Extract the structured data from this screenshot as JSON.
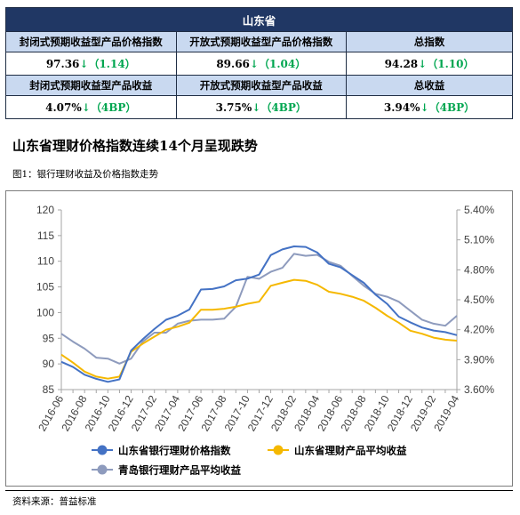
{
  "summary": {
    "title": "山东省",
    "headers1": [
      "封闭式预期收益型产品价格指数",
      "开放式预期收益型产品价格指数",
      "总指数"
    ],
    "values1": [
      {
        "value": "97.36",
        "arrow": "↓",
        "change": "（1.14）"
      },
      {
        "value": "89.66",
        "arrow": "↓",
        "change": "（1.04）"
      },
      {
        "value": "94.28",
        "arrow": "↓",
        "change": "（1.10）"
      }
    ],
    "headers2": [
      "封闭式预期收益型产品收益",
      "开放式预期收益型产品收益",
      "总收益"
    ],
    "values2": [
      {
        "value": "4.07%",
        "arrow": "↓",
        "change": "（4BP）"
      },
      {
        "value": "3.75%",
        "arrow": "↓",
        "change": "（4BP）"
      },
      {
        "value": "3.94%",
        "arrow": "↓",
        "change": "（4BP）"
      }
    ]
  },
  "section_title": "山东省理财价格指数连续14个月呈现跌势",
  "figure_label": "图1：银行理财收益及价格指数走势",
  "source": "资料来源：普益标准",
  "chart_data": {
    "type": "line",
    "x": [
      "2016-06",
      "2016-07",
      "2016-08",
      "2016-09",
      "2016-10",
      "2016-11",
      "2016-12",
      "2017-01",
      "2017-02",
      "2017-03",
      "2017-04",
      "2017-05",
      "2017-06",
      "2017-07",
      "2017-08",
      "2017-09",
      "2017-10",
      "2017-11",
      "2017-12",
      "2018-01",
      "2018-02",
      "2018-03",
      "2018-04",
      "2018-05",
      "2018-06",
      "2018-07",
      "2018-08",
      "2018-09",
      "2018-10",
      "2018-11",
      "2018-12",
      "2019-01",
      "2019-02",
      "2019-03",
      "2019-04"
    ],
    "x_tick_labels": [
      "2016-06",
      "2016-08",
      "2016-10",
      "2016-12",
      "2017-02",
      "2017-04",
      "2017-06",
      "2017-08",
      "2017-10",
      "2017-12",
      "2018-02",
      "2018-04",
      "2018-06",
      "2018-08",
      "2018-10",
      "2018-12",
      "2019-02",
      "2019-04"
    ],
    "y_left": {
      "min": 85,
      "max": 120,
      "ticks": [
        "85",
        "90",
        "95",
        "100",
        "105",
        "110",
        "115",
        "120"
      ]
    },
    "y_right": {
      "min": 3.6,
      "max": 5.4,
      "ticks": [
        "3.60%",
        "3.90%",
        "4.20%",
        "4.50%",
        "4.80%",
        "5.10%",
        "5.40%"
      ]
    },
    "series": [
      {
        "name": "山东省银行理财价格指数",
        "axis": "left",
        "color": "#4472c4",
        "values": [
          90.4,
          89.4,
          87.9,
          87.1,
          86.5,
          87.0,
          92.6,
          94.8,
          96.8,
          98.6,
          99.4,
          100.6,
          104.5,
          104.6,
          105.1,
          106.3,
          106.6,
          107.4,
          111.2,
          112.3,
          112.9,
          112.8,
          111.7,
          109.5,
          108.8,
          107.3,
          105.8,
          103.5,
          101.7,
          99.2,
          98.1,
          97.1,
          96.5,
          96.2,
          95.6
        ]
      },
      {
        "name": "山东省理财产品平均收益",
        "axis": "right",
        "color": "#f5b800",
        "values": [
          3.95,
          3.87,
          3.78,
          3.73,
          3.71,
          3.73,
          3.98,
          4.06,
          4.13,
          4.2,
          4.23,
          4.27,
          4.4,
          4.4,
          4.41,
          4.43,
          4.46,
          4.48,
          4.64,
          4.67,
          4.7,
          4.69,
          4.65,
          4.58,
          4.56,
          4.53,
          4.49,
          4.42,
          4.34,
          4.27,
          4.19,
          4.16,
          4.12,
          4.1,
          4.09
        ]
      },
      {
        "name": "青岛银行理财产品平均收益",
        "axis": "right",
        "color": "#8e9bbd",
        "values": [
          4.16,
          4.08,
          4.01,
          3.92,
          3.91,
          3.86,
          3.91,
          4.08,
          4.17,
          4.17,
          4.26,
          4.29,
          4.3,
          4.3,
          4.31,
          4.43,
          4.73,
          4.71,
          4.78,
          4.82,
          4.96,
          4.94,
          4.95,
          4.88,
          4.84,
          4.74,
          4.64,
          4.56,
          4.53,
          4.48,
          4.39,
          4.3,
          4.26,
          4.24,
          4.34
        ]
      }
    ]
  }
}
